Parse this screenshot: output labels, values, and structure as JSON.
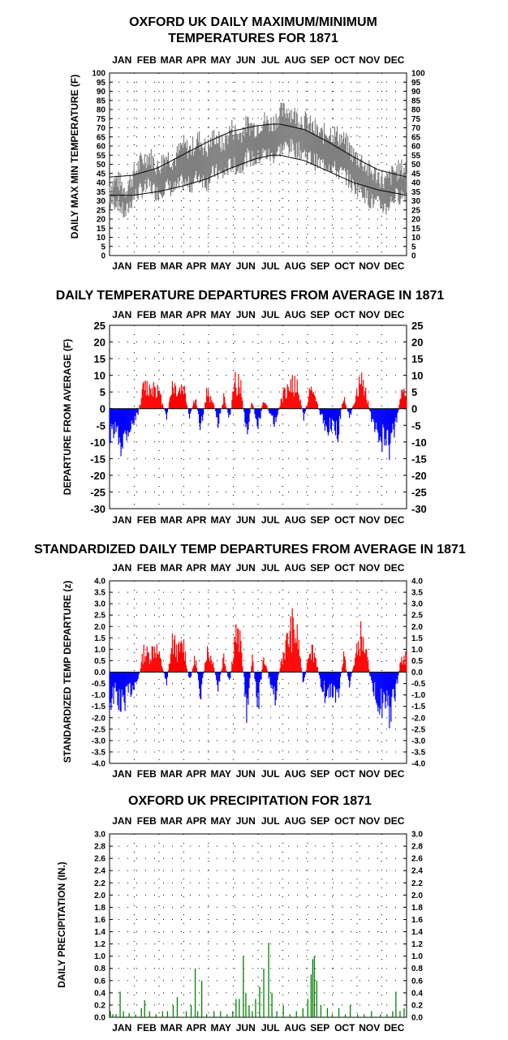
{
  "colors": {
    "range": "#808080",
    "normal": "#000000",
    "warm": "#ff0000",
    "cold": "#0000ff",
    "precip": "#008000",
    "grid": "#000000"
  },
  "months": [
    "JAN",
    "FEB",
    "MAR",
    "APR",
    "MAY",
    "JUN",
    "JUL",
    "AUG",
    "SEP",
    "OCT",
    "NOV",
    "DEC"
  ],
  "chart_data": [
    {
      "id": "maxmin",
      "type": "area",
      "title_lines": [
        "OXFORD UK DAILY MAXIMUM/MINIMUM",
        "TEMPERATURES FOR 1871"
      ],
      "ylabel": "DAILY MAX MIN TEMPERATURE (F)",
      "ylim": [
        0,
        100
      ],
      "yticks": [
        0,
        5,
        10,
        15,
        20,
        25,
        30,
        35,
        40,
        45,
        50,
        55,
        60,
        65,
        70,
        75,
        80,
        85,
        90,
        95,
        100
      ],
      "x_unit": "day of year",
      "xlim": [
        1,
        365
      ],
      "series": [
        {
          "name": "",
          "role": "daily_max_anchors",
          "x": [
            1,
            10,
            20,
            30,
            40,
            50,
            60,
            70,
            80,
            90,
            100,
            110,
            120,
            130,
            140,
            150,
            160,
            170,
            180,
            190,
            200,
            210,
            220,
            230,
            240,
            250,
            260,
            270,
            280,
            290,
            300,
            310,
            320,
            330,
            340,
            350,
            365
          ],
          "y": [
            38,
            42,
            36,
            44,
            52,
            55,
            48,
            55,
            52,
            60,
            58,
            64,
            58,
            66,
            60,
            70,
            66,
            72,
            70,
            74,
            72,
            78,
            80,
            76,
            74,
            70,
            66,
            68,
            66,
            62,
            55,
            52,
            46,
            44,
            40,
            46,
            48
          ]
        },
        {
          "name": "",
          "role": "daily_min_anchors",
          "x": [
            1,
            10,
            20,
            30,
            40,
            50,
            60,
            70,
            80,
            90,
            100,
            110,
            120,
            130,
            140,
            150,
            160,
            170,
            180,
            190,
            200,
            210,
            220,
            230,
            240,
            250,
            260,
            270,
            280,
            290,
            300,
            310,
            320,
            330,
            340,
            350,
            365
          ],
          "y": [
            28,
            30,
            22,
            32,
            36,
            38,
            34,
            38,
            36,
            40,
            38,
            44,
            40,
            46,
            44,
            50,
            48,
            54,
            52,
            56,
            54,
            58,
            60,
            58,
            56,
            52,
            50,
            50,
            46,
            44,
            38,
            36,
            30,
            28,
            26,
            32,
            34
          ]
        },
        {
          "name": "",
          "role": "normal_max",
          "x": [
            1,
            30,
            60,
            90,
            120,
            150,
            180,
            200,
            210,
            240,
            270,
            300,
            330,
            365
          ],
          "y": [
            43,
            44,
            48,
            55,
            62,
            68,
            71,
            72,
            72,
            69,
            62,
            54,
            47,
            43
          ]
        },
        {
          "name": "",
          "role": "normal_min",
          "x": [
            1,
            30,
            60,
            90,
            120,
            150,
            180,
            200,
            210,
            240,
            270,
            300,
            330,
            365
          ],
          "y": [
            33,
            33,
            35,
            38,
            42,
            48,
            53,
            55,
            55,
            52,
            46,
            40,
            36,
            33
          ]
        }
      ]
    },
    {
      "id": "departures",
      "type": "bar",
      "title": "DAILY TEMPERATURE DEPARTURES FROM AVERAGE IN 1871",
      "ylabel": "DEPARTURE FROM AVERAGE (F)",
      "ylim": [
        -30,
        25
      ],
      "yticks": [
        -30,
        -25,
        -20,
        -15,
        -10,
        -5,
        0,
        5,
        10,
        15,
        20,
        25
      ],
      "x_unit": "day of year",
      "x": [
        1,
        8,
        15,
        22,
        29,
        36,
        43,
        50,
        57,
        64,
        71,
        78,
        85,
        92,
        99,
        106,
        113,
        120,
        127,
        134,
        141,
        148,
        155,
        162,
        169,
        176,
        183,
        190,
        197,
        204,
        211,
        218,
        225,
        232,
        239,
        246,
        253,
        260,
        267,
        274,
        281,
        288,
        295,
        302,
        309,
        316,
        323,
        330,
        337,
        344,
        351,
        358,
        365
      ],
      "values": [
        -12,
        -8,
        -13,
        -9,
        -6,
        -2,
        9,
        8,
        10,
        4,
        -4,
        10,
        7,
        9,
        -4,
        5,
        -8,
        6,
        4,
        -6,
        5,
        -4,
        12,
        8,
        -10,
        4,
        -9,
        5,
        -2,
        -6,
        3,
        8,
        10,
        8,
        -4,
        7,
        5,
        -3,
        -8,
        -6,
        -10,
        6,
        -4,
        4,
        11,
        6,
        -6,
        -10,
        -13,
        -15,
        -8,
        5,
        6
      ]
    },
    {
      "id": "standardized",
      "type": "bar",
      "title": "STANDARDIZED DAILY TEMP DEPARTURES FROM AVERAGE IN 1871",
      "ylabel": "STANDARDIZED TEMP DEPARTURE (z)",
      "ylim": [
        -4,
        4
      ],
      "yticks": [
        -4,
        -3.5,
        -3,
        -2.5,
        -2,
        -1.5,
        -1,
        -0.5,
        0,
        0.5,
        1,
        1.5,
        2,
        2.5,
        3,
        3.5,
        4
      ],
      "x_unit": "day of year",
      "x": [
        1,
        8,
        15,
        22,
        29,
        36,
        43,
        50,
        57,
        64,
        71,
        78,
        85,
        92,
        99,
        106,
        113,
        120,
        127,
        134,
        141,
        148,
        155,
        162,
        169,
        176,
        183,
        190,
        197,
        204,
        211,
        218,
        225,
        232,
        239,
        246,
        253,
        260,
        267,
        274,
        281,
        288,
        295,
        302,
        309,
        316,
        323,
        330,
        337,
        344,
        351,
        358,
        365
      ],
      "values": [
        -1.8,
        -1.2,
        -2.0,
        -1.4,
        -0.9,
        -0.4,
        1.2,
        1.0,
        1.6,
        0.6,
        -0.6,
        1.8,
        1.2,
        1.6,
        -0.6,
        0.9,
        -1.4,
        1.3,
        0.8,
        -1.1,
        1.0,
        -0.8,
        2.3,
        1.6,
        -2.2,
        0.8,
        -2.0,
        1.0,
        -0.5,
        -1.4,
        0.6,
        1.7,
        2.6,
        1.9,
        -0.8,
        1.6,
        1.0,
        -0.6,
        -1.5,
        -1.0,
        -1.6,
        1.0,
        -0.7,
        0.8,
        2.1,
        1.0,
        -1.0,
        -1.6,
        -2.0,
        -2.4,
        -1.4,
        0.7,
        0.9
      ]
    },
    {
      "id": "precip",
      "type": "bar",
      "title": "OXFORD UK PRECIPITATION FOR 1871",
      "ylabel": "DAILY PRECIPITATION (IN.)",
      "ylim": [
        0,
        3
      ],
      "yticks": [
        0,
        0.2,
        0.4,
        0.6,
        0.8,
        1.0,
        1.2,
        1.4,
        1.6,
        1.8,
        2.0,
        2.2,
        2.4,
        2.6,
        2.8,
        3.0
      ],
      "x_unit": "day of year",
      "x": [
        2,
        5,
        9,
        14,
        18,
        25,
        33,
        40,
        44,
        50,
        58,
        66,
        72,
        79,
        84,
        95,
        101,
        106,
        109,
        114,
        120,
        129,
        137,
        145,
        152,
        156,
        160,
        165,
        168,
        172,
        176,
        180,
        185,
        190,
        196,
        200,
        206,
        214,
        222,
        230,
        238,
        244,
        248,
        250,
        252,
        255,
        260,
        268,
        274,
        282,
        290,
        296,
        305,
        313,
        322,
        333,
        341,
        348,
        352,
        357,
        362
      ],
      "values": [
        0.1,
        0.05,
        0.05,
        0.42,
        0.1,
        0.07,
        0.05,
        0.15,
        0.28,
        0.1,
        0.05,
        0.1,
        0.1,
        0.2,
        0.33,
        0.1,
        0.2,
        0.8,
        0.1,
        0.6,
        0.05,
        0.1,
        0.1,
        0.05,
        0.1,
        0.3,
        0.3,
        1.0,
        0.4,
        0.2,
        0.1,
        0.3,
        0.5,
        0.8,
        1.22,
        0.4,
        0.1,
        0.2,
        0.05,
        0.1,
        0.15,
        0.3,
        0.7,
        0.95,
        1.0,
        0.6,
        0.2,
        0.15,
        0.05,
        0.15,
        0.05,
        0.2,
        0.05,
        0.05,
        0.1,
        0.05,
        0.05,
        0.1,
        0.42,
        0.1,
        0.15
      ]
    }
  ]
}
